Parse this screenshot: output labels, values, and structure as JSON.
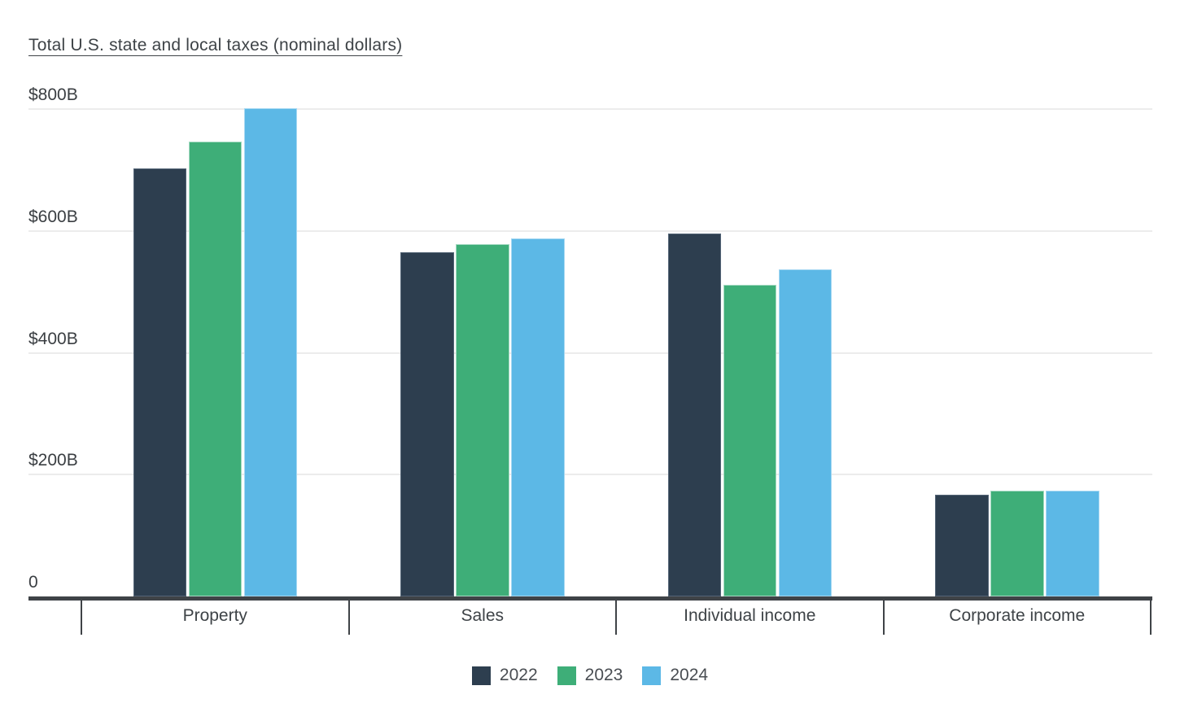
{
  "chart_data": {
    "type": "bar",
    "title": "Total U.S. state and local taxes (nominal dollars)",
    "categories": [
      "Property",
      "Sales",
      "Individual income",
      "Corporate income"
    ],
    "series": [
      {
        "name": "2022",
        "color": "#2d3e4f",
        "border_color": "#546577",
        "values": [
          703,
          565,
          596,
          167
        ]
      },
      {
        "name": "2023",
        "color": "#3eae78",
        "border_color": "#a6dac3",
        "values": [
          746,
          578,
          511,
          173
        ]
      },
      {
        "name": "2024",
        "color": "#5cb8e6",
        "border_color": "#a6d8f2",
        "values": [
          801,
          587,
          537,
          174
        ]
      }
    ],
    "y_ticks": [
      {
        "label": "$800B",
        "value": 800
      },
      {
        "label": "$600B",
        "value": 600
      },
      {
        "label": "$400B",
        "value": 400
      },
      {
        "label": "$200B",
        "value": 200
      },
      {
        "label": "0",
        "value": 0
      }
    ],
    "ylim": [
      0,
      800
    ],
    "grid": true,
    "legend_position": "bottom",
    "colors": {
      "axis": "#3f4347",
      "gridline": "#ececec",
      "title_text": "#3e4347",
      "tick_text": "#3a3e42",
      "legend_text": "#494d52",
      "background": "#ffffff"
    }
  }
}
